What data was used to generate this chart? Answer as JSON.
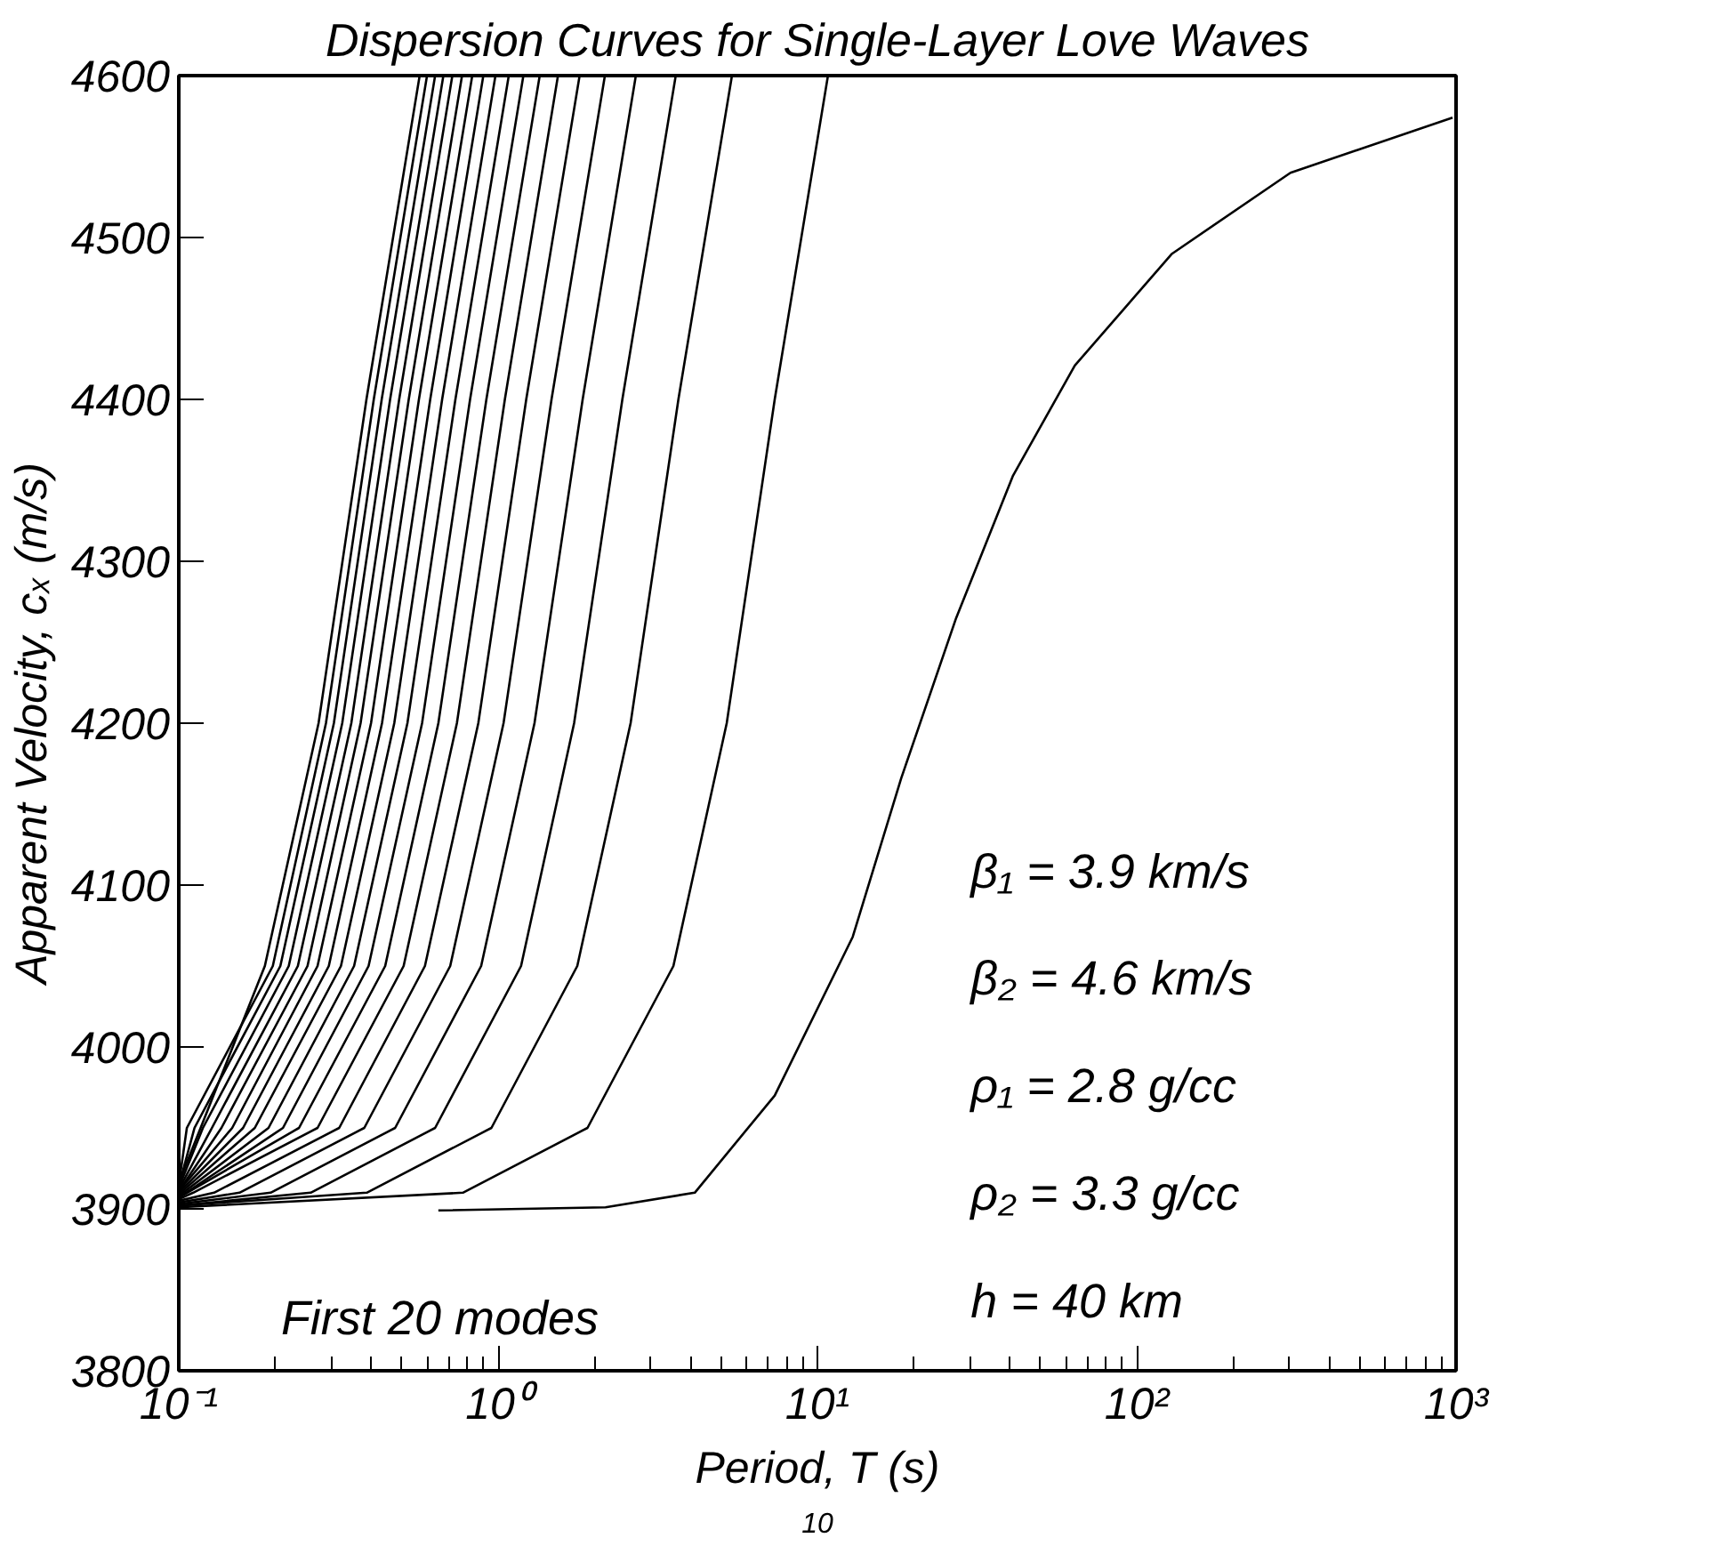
{
  "chart_data": {
    "type": "line",
    "title": "Dispersion Curves for Single-Layer Love Waves",
    "xlabel": "Period, T (s)",
    "ylabel": "Apparent Velocity, cₓ (m/s)",
    "log": "x",
    "xlim": [
      0.1,
      1000
    ],
    "ylim": [
      3800,
      4600
    ],
    "xticks": [
      {
        "value": 0.1,
        "label": "10⁻¹"
      },
      {
        "value": 1,
        "label": "10⁰"
      },
      {
        "value": 10,
        "label": "10¹"
      },
      {
        "value": 100,
        "label": "10²"
      },
      {
        "value": 1000,
        "label": "10³"
      }
    ],
    "yticks": [
      3800,
      3900,
      4000,
      4100,
      4200,
      4300,
      4400,
      4500,
      4600
    ],
    "annotations": [
      "β₁ = 3.9 km/s",
      "β₂ = 4.6 km/s",
      "ρ₁ = 2.8 g/cc",
      "ρ₂ = 3.3 g/cc",
      "h = 40 km",
      "First 20 modes",
      "10"
    ],
    "series": [
      {
        "color": "#000000",
        "x": [
          0.65,
          2.17,
          4.13,
          7.35,
          12.9,
          18.3,
          27.2,
          41,
          64,
          129,
          303,
          975
        ],
        "values": [
          3899,
          3901,
          3910,
          3970,
          4068,
          4166,
          4265,
          4353,
          4421,
          4490,
          4540,
          4574
        ]
      },
      {
        "color": "#000000",
        "x": [
          0.1,
          0.776,
          1.905,
          3.54,
          5.2,
          7.35,
          10.79
        ],
        "values": [
          3901,
          3910,
          3950,
          4050,
          4200,
          4400,
          4600
        ]
      },
      {
        "color": "#000000",
        "x": [
          0.1,
          0.388,
          0.953,
          1.77,
          2.6,
          3.67,
          5.4
        ],
        "values": [
          3902,
          3910,
          3950,
          4050,
          4200,
          4400,
          4600
        ]
      },
      {
        "color": "#000000",
        "x": [
          0.1,
          0.259,
          0.635,
          1.18,
          1.73,
          2.45,
          3.6
        ],
        "values": [
          3902,
          3910,
          3950,
          4050,
          4200,
          4400,
          4600
        ]
      },
      {
        "color": "#000000",
        "x": [
          0.1,
          0.194,
          0.476,
          0.885,
          1.3,
          1.84,
          2.7
        ],
        "values": [
          3903,
          3910,
          3950,
          4050,
          4200,
          4400,
          4600
        ]
      },
      {
        "color": "#000000",
        "x": [
          0.1,
          0.155,
          0.381,
          0.708,
          1.04,
          1.47,
          2.16
        ],
        "values": [
          3904,
          3910,
          3950,
          4050,
          4200,
          4400,
          4600
        ]
      },
      {
        "color": "#000000",
        "x": [
          0.1,
          0.129,
          0.318,
          0.59,
          0.867,
          1.225,
          1.8
        ],
        "values": [
          3905,
          3910,
          3950,
          4050,
          4200,
          4400,
          4600
        ]
      },
      {
        "color": "#000000",
        "x": [
          0.1,
          0.111,
          0.272,
          0.506,
          0.743,
          1.05,
          1.54
        ],
        "values": [
          3906,
          3910,
          3950,
          4050,
          4200,
          4400,
          4600
        ]
      },
      {
        "color": "#000000",
        "x": [
          0.1,
          0.238,
          0.443,
          0.65,
          0.919,
          1.35
        ],
        "values": [
          3907,
          3950,
          4050,
          4200,
          4400,
          4600
        ]
      },
      {
        "color": "#000000",
        "x": [
          0.1,
          0.212,
          0.393,
          0.578,
          0.817,
          1.2
        ],
        "values": [
          3907,
          3950,
          4050,
          4200,
          4400,
          4600
        ]
      },
      {
        "color": "#000000",
        "x": [
          0.1,
          0.191,
          0.354,
          0.52,
          0.735,
          1.08
        ],
        "values": [
          3908,
          3950,
          4050,
          4200,
          4400,
          4600
        ]
      },
      {
        "color": "#000000",
        "x": [
          0.1,
          0.173,
          0.322,
          0.473,
          0.668,
          0.981
        ],
        "values": [
          3909,
          3950,
          4050,
          4200,
          4400,
          4600
        ]
      },
      {
        "color": "#000000",
        "x": [
          0.1,
          0.159,
          0.295,
          0.433,
          0.613,
          0.899
        ],
        "values": [
          3910,
          3950,
          4050,
          4200,
          4400,
          4600
        ]
      },
      {
        "color": "#000000",
        "x": [
          0.1,
          0.147,
          0.272,
          0.4,
          0.565,
          0.83
        ],
        "values": [
          3911,
          3950,
          4050,
          4200,
          4400,
          4600
        ]
      },
      {
        "color": "#000000",
        "x": [
          0.1,
          0.136,
          0.253,
          0.371,
          0.525,
          0.771
        ],
        "values": [
          3911,
          3950,
          4050,
          4200,
          4400,
          4600
        ]
      },
      {
        "color": "#000000",
        "x": [
          0.1,
          0.127,
          0.236,
          0.347,
          0.49,
          0.719
        ],
        "values": [
          3912,
          3950,
          4050,
          4200,
          4400,
          4600
        ]
      },
      {
        "color": "#000000",
        "x": [
          0.1,
          0.119,
          0.221,
          0.325,
          0.459,
          0.674
        ],
        "values": [
          3913,
          3950,
          4050,
          4200,
          4400,
          4600
        ]
      },
      {
        "color": "#000000",
        "x": [
          0.1,
          0.112,
          0.208,
          0.306,
          0.432,
          0.635
        ],
        "values": [
          3914,
          3950,
          4050,
          4200,
          4400,
          4600
        ]
      },
      {
        "color": "#000000",
        "x": [
          0.1,
          0.106,
          0.197,
          0.289,
          0.408,
          0.599
        ],
        "values": [
          3915,
          3950,
          4050,
          4200,
          4400,
          4600
        ]
      },
      {
        "color": "#000000",
        "x": [
          0.1,
          0.186,
          0.274,
          0.387,
          0.568
        ],
        "values": [
          3916,
          4050,
          4200,
          4400,
          4600
        ]
      }
    ]
  }
}
